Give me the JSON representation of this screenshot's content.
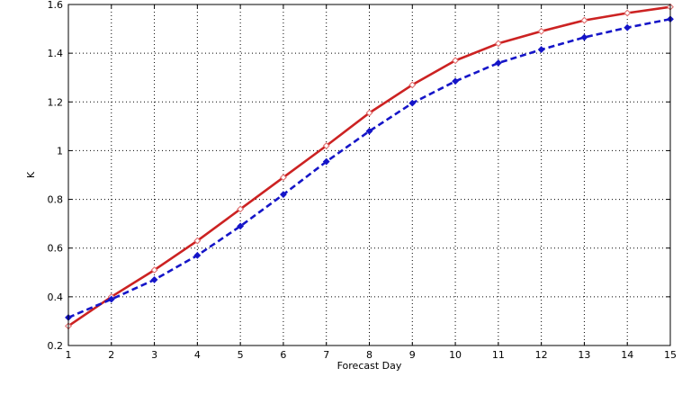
{
  "chart_data": {
    "type": "line",
    "xlabel": "Forecast Day",
    "ylabel": "K",
    "xlim": [
      1,
      15
    ],
    "ylim": [
      0.2,
      1.6
    ],
    "x_ticks": [
      1,
      2,
      3,
      4,
      5,
      6,
      7,
      8,
      9,
      10,
      11,
      12,
      13,
      14,
      15
    ],
    "y_ticks": [
      0.2,
      0.4,
      0.6,
      0.8,
      1,
      1.2,
      1.4,
      1.6
    ],
    "y_tick_labels": [
      "0.2",
      "0.4",
      "0.6",
      "0.8",
      "1",
      "1.2",
      "1.4",
      "1.6"
    ],
    "grid": true,
    "x": [
      1,
      2,
      3,
      4,
      5,
      6,
      7,
      8,
      9,
      10,
      11,
      12,
      13,
      14,
      15
    ],
    "series": [
      {
        "values": [
          0.28,
          0.4,
          0.51,
          0.63,
          0.76,
          0.89,
          1.02,
          1.155,
          1.27,
          1.37,
          1.44,
          1.49,
          1.535,
          1.565,
          1.59
        ],
        "color": "#cc2222",
        "line_style": "solid",
        "marker": "open-diamond"
      },
      {
        "values": [
          0.315,
          0.39,
          0.47,
          0.57,
          0.69,
          0.82,
          0.955,
          1.08,
          1.195,
          1.285,
          1.36,
          1.415,
          1.465,
          1.505,
          1.54
        ],
        "color": "#1515c8",
        "line_style": "dashed",
        "marker": "filled-diamond"
      }
    ]
  }
}
